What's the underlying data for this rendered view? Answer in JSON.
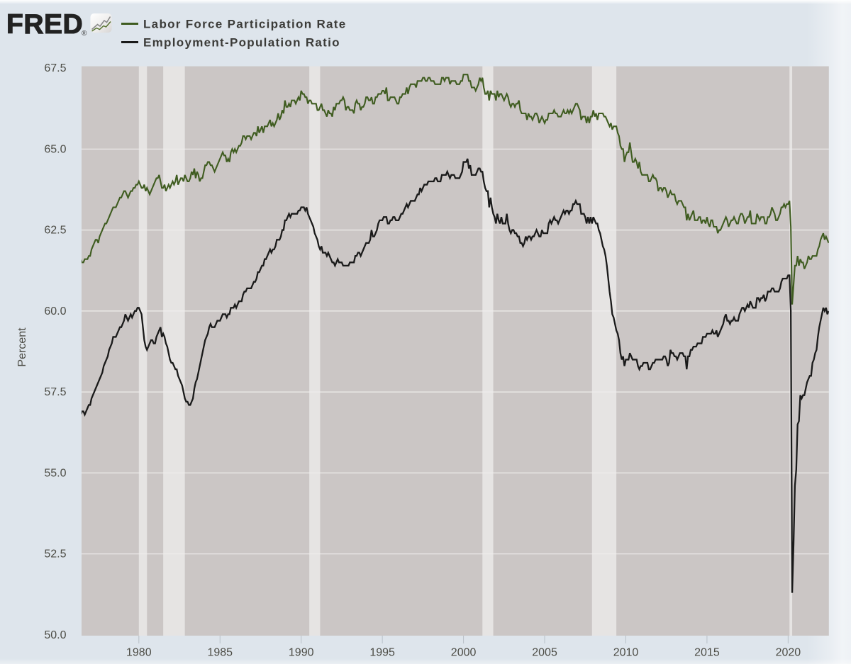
{
  "header": {
    "logo_text": "FRED",
    "registered_mark": "®",
    "logo_icon": "line-chart-icon"
  },
  "legend": [
    {
      "label": "Labor Force Participation Rate",
      "color": "#3f5c20"
    },
    {
      "label": "Employment-Population Ratio",
      "color": "#1a1a1a"
    }
  ],
  "style": {
    "background": "#dee5ec",
    "plot_background": "#cbc6c5",
    "recession_band": "#e6e4e3",
    "gridline": "#efedec",
    "tick_mark": "#b9c0c8",
    "tick_text": "#4c4c45",
    "legend_text": "#3b3b38",
    "logo_color": "#222222"
  },
  "chart_data": {
    "type": "line",
    "title": "",
    "xlabel": "",
    "ylabel": "Percent",
    "frequency": "monthly",
    "x_start": "1976-06",
    "x_end": "2022-07",
    "ylim": [
      50.0,
      67.5
    ],
    "xlim": [
      1976.47,
      2022.51
    ],
    "grid": "horizontal",
    "legend_position": "top-left",
    "yticks": [
      67.5,
      65.0,
      62.5,
      60.0,
      57.5,
      55.0,
      52.5,
      50.0
    ],
    "ytick_labels": [
      "67.5",
      "65.0",
      "62.5",
      "60.0",
      "57.5",
      "55.0",
      "52.5",
      "50.0"
    ],
    "xticks": [
      1980,
      1985,
      1990,
      1995,
      2000,
      2005,
      2010,
      2015,
      2020
    ],
    "xtick_labels": [
      "1980",
      "1985",
      "1990",
      "1995",
      "2000",
      "2005",
      "2010",
      "2015",
      "2020"
    ],
    "series": [
      {
        "name": "Labor Force Participation Rate",
        "color": "#3f5c20",
        "values": [
          61.6,
          61.5,
          61.5,
          61.6,
          61.6,
          61.6,
          61.7,
          61.7,
          61.9,
          62.0,
          62.1,
          62.2,
          62.2,
          62.1,
          62.3,
          62.4,
          62.5,
          62.6,
          62.7,
          62.7,
          62.8,
          62.9,
          63.0,
          63.1,
          63.2,
          63.2,
          63.2,
          63.3,
          63.4,
          63.5,
          63.5,
          63.6,
          63.7,
          63.7,
          63.6,
          63.5,
          63.6,
          63.7,
          63.7,
          63.8,
          63.8,
          63.9,
          63.9,
          64.0,
          63.9,
          63.8,
          63.8,
          63.9,
          63.7,
          63.8,
          63.7,
          63.6,
          63.7,
          63.8,
          63.9,
          64.0,
          64.1,
          64.1,
          64.2,
          64.0,
          63.8,
          63.8,
          63.9,
          63.7,
          63.8,
          63.9,
          63.8,
          63.9,
          64.0,
          63.9,
          64.0,
          64.2,
          63.9,
          64.0,
          64.1,
          64.1,
          64.0,
          64.2,
          64.1,
          64.0,
          64.0,
          64.1,
          64.3,
          64.2,
          64.4,
          64.1,
          64.3,
          64.2,
          64.0,
          64.1,
          64.1,
          64.3,
          64.5,
          64.5,
          64.6,
          64.6,
          64.5,
          64.5,
          64.4,
          64.3,
          64.4,
          64.5,
          64.6,
          64.7,
          64.8,
          64.9,
          64.8,
          64.8,
          64.6,
          64.7,
          64.6,
          64.9,
          65.0,
          64.9,
          65.0,
          64.9,
          65.0,
          65.1,
          65.1,
          65.2,
          65.4,
          65.4,
          65.3,
          65.4,
          65.4,
          65.4,
          65.3,
          65.4,
          65.5,
          65.5,
          65.4,
          65.7,
          65.5,
          65.6,
          65.7,
          65.5,
          65.7,
          65.7,
          65.7,
          65.8,
          65.9,
          65.7,
          65.8,
          65.7,
          65.8,
          65.9,
          66.1,
          65.9,
          66.0,
          66.2,
          66.1,
          66.5,
          66.3,
          66.3,
          66.4,
          66.3,
          66.5,
          66.5,
          66.5,
          66.4,
          66.5,
          66.6,
          66.5,
          66.8,
          66.7,
          66.7,
          66.6,
          66.6,
          66.4,
          66.5,
          66.5,
          66.4,
          66.4,
          66.4,
          66.4,
          66.2,
          66.2,
          66.3,
          66.4,
          66.2,
          66.2,
          66.1,
          66.0,
          66.2,
          66.1,
          66.1,
          66.0,
          66.3,
          66.2,
          66.4,
          66.4,
          66.4,
          66.5,
          66.5,
          66.6,
          66.5,
          66.2,
          66.3,
          66.3,
          66.2,
          66.2,
          66.2,
          66.1,
          66.4,
          66.5,
          66.4,
          66.4,
          66.2,
          66.3,
          66.3,
          66.4,
          66.6,
          66.6,
          66.5,
          66.5,
          66.6,
          66.4,
          66.4,
          66.6,
          66.6,
          66.7,
          66.7,
          66.7,
          66.8,
          66.8,
          66.7,
          66.9,
          66.5,
          66.5,
          66.6,
          66.6,
          66.6,
          66.6,
          66.5,
          66.4,
          66.4,
          66.6,
          66.6,
          66.7,
          66.7,
          66.7,
          66.9,
          66.7,
          66.9,
          67.0,
          67.0,
          67.0,
          67.0,
          66.9,
          67.1,
          67.1,
          67.1,
          67.1,
          67.2,
          67.2,
          67.1,
          67.1,
          67.2,
          67.2,
          67.1,
          67.1,
          67.1,
          67.0,
          67.0,
          67.0,
          67.0,
          67.0,
          67.2,
          67.2,
          67.1,
          67.2,
          67.2,
          67.2,
          67.0,
          67.1,
          67.1,
          67.1,
          67.1,
          67.0,
          67.0,
          67.0,
          67.1,
          67.1,
          67.3,
          67.3,
          67.3,
          67.3,
          67.1,
          67.1,
          66.9,
          66.9,
          66.9,
          66.8,
          66.9,
          67.0,
          67.2,
          67.1,
          67.2,
          66.9,
          66.7,
          66.7,
          66.8,
          66.5,
          66.8,
          66.7,
          66.7,
          66.7,
          66.5,
          66.8,
          66.6,
          66.7,
          66.7,
          66.6,
          66.5,
          66.6,
          66.7,
          66.6,
          66.4,
          66.3,
          66.4,
          66.4,
          66.3,
          66.4,
          66.4,
          66.5,
          66.2,
          66.1,
          66.1,
          66.1,
          66.1,
          65.9,
          66.1,
          66.0,
          66.0,
          65.9,
          66.0,
          66.1,
          66.1,
          66.0,
          65.8,
          65.9,
          66.0,
          65.9,
          65.8,
          65.9,
          65.9,
          66.1,
          66.1,
          66.1,
          66.1,
          66.2,
          66.1,
          66.1,
          66.0,
          66.0,
          66.0,
          66.1,
          66.2,
          66.1,
          66.1,
          66.2,
          66.1,
          66.2,
          66.1,
          66.2,
          66.3,
          66.4,
          66.4,
          66.3,
          66.2,
          65.9,
          66.0,
          66.0,
          66.0,
          65.8,
          66.0,
          65.8,
          66.0,
          66.0,
          66.2,
          66.0,
          66.1,
          65.9,
          66.1,
          66.1,
          66.1,
          66.1,
          66.0,
          66.0,
          65.9,
          65.8,
          65.7,
          65.8,
          65.6,
          65.7,
          65.7,
          65.7,
          65.5,
          65.4,
          65.1,
          65.0,
          65.0,
          64.6,
          64.8,
          64.9,
          64.9,
          65.2,
          64.9,
          64.6,
          64.6,
          64.7,
          64.6,
          64.4,
          64.6,
          64.3,
          64.2,
          64.2,
          64.2,
          64.2,
          64.2,
          64.0,
          64.0,
          64.1,
          64.2,
          64.1,
          64.1,
          64.0,
          63.7,
          63.8,
          63.8,
          63.7,
          63.8,
          63.8,
          63.7,
          63.5,
          63.6,
          63.7,
          63.6,
          63.6,
          63.6,
          63.4,
          63.3,
          63.4,
          63.4,
          63.4,
          63.3,
          63.2,
          63.2,
          62.8,
          63.0,
          62.8,
          62.9,
          63.0,
          63.1,
          62.8,
          62.8,
          62.8,
          62.9,
          62.9,
          62.7,
          62.8,
          62.8,
          62.7,
          62.9,
          62.7,
          62.6,
          62.8,
          62.8,
          62.6,
          62.6,
          62.6,
          62.4,
          62.5,
          62.5,
          62.6,
          62.7,
          62.8,
          62.9,
          62.8,
          62.6,
          62.7,
          62.8,
          62.8,
          62.9,
          62.8,
          62.7,
          62.7,
          62.9,
          63.0,
          63.0,
          62.9,
          62.7,
          62.8,
          62.9,
          62.9,
          63.1,
          62.7,
          62.7,
          62.7,
          62.7,
          63.0,
          62.9,
          62.8,
          62.9,
          62.9,
          62.9,
          62.7,
          62.7,
          62.9,
          62.9,
          63.0,
          63.2,
          63.1,
          63.0,
          62.8,
          62.8,
          62.9,
          63.0,
          63.2,
          63.2,
          63.3,
          63.2,
          63.3,
          63.3,
          63.4,
          62.6,
          60.2,
          60.8,
          61.4,
          61.4,
          61.7,
          61.4,
          61.6,
          61.5,
          61.5,
          61.3,
          61.4,
          61.5,
          61.7,
          61.6,
          61.6,
          61.7,
          61.7,
          61.7,
          61.7,
          61.9,
          62.0,
          62.2,
          62.3,
          62.4,
          62.2,
          62.3,
          62.2,
          62.1
        ]
      },
      {
        "name": "Employment-Population Ratio",
        "color": "#1a1a1a",
        "values": [
          56.8,
          56.9,
          56.9,
          56.8,
          56.9,
          57.0,
          57.1,
          57.1,
          57.3,
          57.4,
          57.5,
          57.6,
          57.7,
          57.8,
          57.9,
          58.0,
          58.1,
          58.3,
          58.4,
          58.5,
          58.6,
          58.8,
          58.9,
          59.0,
          59.2,
          59.2,
          59.2,
          59.3,
          59.4,
          59.5,
          59.5,
          59.6,
          59.7,
          59.9,
          59.8,
          59.7,
          59.8,
          59.9,
          59.8,
          59.9,
          60.0,
          60.0,
          60.1,
          60.1,
          60.0,
          59.9,
          59.5,
          59.1,
          58.9,
          58.8,
          58.9,
          59.0,
          59.1,
          59.1,
          59.0,
          59.0,
          59.2,
          59.3,
          59.4,
          59.5,
          59.2,
          59.3,
          59.2,
          59.0,
          58.9,
          58.7,
          58.5,
          58.4,
          58.4,
          58.3,
          58.2,
          58.2,
          58.0,
          57.9,
          57.8,
          57.7,
          57.5,
          57.3,
          57.2,
          57.2,
          57.1,
          57.1,
          57.2,
          57.3,
          57.6,
          57.8,
          57.9,
          58.1,
          58.3,
          58.5,
          58.7,
          58.9,
          59.1,
          59.2,
          59.3,
          59.5,
          59.6,
          59.5,
          59.5,
          59.5,
          59.6,
          59.7,
          59.7,
          59.7,
          59.8,
          59.9,
          59.9,
          59.9,
          59.8,
          59.9,
          59.9,
          60.1,
          60.1,
          60.1,
          60.2,
          60.1,
          60.2,
          60.3,
          60.3,
          60.3,
          60.5,
          60.6,
          60.6,
          60.7,
          60.7,
          60.7,
          60.7,
          60.8,
          60.9,
          60.9,
          61.0,
          61.2,
          61.2,
          61.3,
          61.4,
          61.4,
          61.6,
          61.6,
          61.7,
          61.8,
          61.9,
          61.8,
          61.9,
          61.9,
          62.0,
          62.2,
          62.2,
          62.2,
          62.3,
          62.5,
          62.5,
          62.8,
          62.8,
          62.9,
          63.0,
          62.9,
          63.0,
          63.0,
          63.0,
          63.0,
          63.0,
          63.1,
          63.1,
          63.2,
          63.2,
          63.2,
          63.1,
          63.2,
          63.0,
          62.9,
          62.8,
          62.7,
          62.6,
          62.4,
          62.3,
          62.2,
          62.0,
          61.9,
          62.0,
          61.8,
          61.8,
          61.8,
          61.7,
          61.8,
          61.7,
          61.6,
          61.5,
          61.5,
          61.4,
          61.5,
          61.6,
          61.5,
          61.5,
          61.5,
          61.4,
          61.4,
          61.4,
          61.4,
          61.4,
          61.5,
          61.5,
          61.5,
          61.5,
          61.7,
          61.7,
          61.8,
          61.8,
          61.7,
          61.8,
          61.9,
          62.0,
          62.1,
          62.1,
          62.1,
          62.2,
          62.5,
          62.3,
          62.3,
          62.4,
          62.5,
          62.7,
          62.8,
          62.8,
          62.8,
          62.9,
          62.9,
          62.9,
          62.7,
          62.7,
          62.8,
          62.8,
          62.9,
          62.9,
          62.8,
          62.8,
          62.8,
          62.9,
          63.0,
          63.0,
          63.1,
          63.2,
          63.3,
          63.2,
          63.3,
          63.4,
          63.4,
          63.4,
          63.4,
          63.5,
          63.6,
          63.6,
          63.8,
          63.7,
          63.8,
          63.9,
          63.9,
          63.9,
          64.0,
          64.0,
          64.0,
          64.0,
          64.0,
          64.1,
          64.1,
          64.0,
          64.0,
          64.0,
          64.2,
          64.2,
          64.2,
          64.2,
          64.3,
          64.2,
          64.1,
          64.2,
          64.2,
          64.2,
          64.1,
          64.1,
          64.1,
          64.1,
          64.2,
          64.3,
          64.6,
          64.6,
          64.6,
          64.7,
          64.4,
          64.5,
          64.2,
          64.2,
          64.2,
          64.2,
          64.3,
          64.4,
          64.4,
          64.3,
          64.3,
          64.0,
          63.8,
          63.7,
          63.7,
          63.2,
          63.5,
          63.2,
          63.0,
          62.9,
          62.7,
          63.0,
          62.8,
          62.7,
          62.9,
          62.7,
          62.7,
          62.7,
          63.0,
          62.7,
          62.5,
          62.4,
          62.5,
          62.5,
          62.4,
          62.4,
          62.3,
          62.3,
          62.1,
          62.1,
          62.0,
          62.1,
          62.3,
          62.2,
          62.3,
          62.3,
          62.2,
          62.3,
          62.3,
          62.4,
          62.5,
          62.4,
          62.3,
          62.3,
          62.5,
          62.4,
          62.4,
          62.4,
          62.4,
          62.7,
          62.8,
          62.7,
          62.8,
          62.9,
          62.8,
          62.8,
          62.7,
          62.8,
          62.9,
          63.0,
          63.1,
          63.0,
          63.1,
          63.1,
          63.0,
          63.1,
          63.1,
          63.3,
          63.3,
          63.4,
          63.3,
          63.3,
          63.3,
          63.0,
          63.0,
          63.0,
          62.9,
          62.7,
          62.9,
          62.7,
          62.9,
          62.7,
          62.9,
          62.8,
          62.7,
          62.7,
          62.5,
          62.4,
          62.2,
          62.0,
          61.9,
          61.7,
          61.4,
          61.0,
          60.6,
          60.3,
          59.9,
          59.8,
          59.6,
          59.4,
          59.3,
          59.1,
          58.7,
          58.5,
          58.6,
          58.3,
          58.5,
          58.5,
          58.5,
          58.7,
          58.6,
          58.5,
          58.5,
          58.5,
          58.5,
          58.3,
          58.2,
          58.3,
          58.3,
          58.4,
          58.4,
          58.4,
          58.4,
          58.2,
          58.2,
          58.3,
          58.4,
          58.4,
          58.5,
          58.5,
          58.5,
          58.5,
          58.5,
          58.5,
          58.6,
          58.6,
          58.5,
          58.3,
          58.4,
          58.8,
          58.7,
          58.7,
          58.6,
          58.6,
          58.5,
          58.6,
          58.7,
          58.7,
          58.7,
          58.6,
          58.6,
          58.2,
          58.6,
          58.6,
          58.8,
          58.8,
          58.9,
          58.9,
          58.9,
          59.0,
          59.0,
          59.0,
          59.0,
          59.2,
          59.2,
          59.2,
          59.3,
          59.3,
          59.3,
          59.3,
          59.4,
          59.3,
          59.3,
          59.4,
          59.2,
          59.3,
          59.4,
          59.5,
          59.6,
          59.8,
          59.9,
          59.7,
          59.7,
          59.6,
          59.7,
          59.7,
          59.8,
          59.7,
          59.7,
          59.7,
          59.9,
          60.0,
          60.1,
          60.1,
          60.0,
          60.1,
          60.2,
          60.1,
          60.3,
          60.2,
          60.1,
          60.1,
          60.1,
          60.4,
          60.4,
          60.3,
          60.4,
          60.4,
          60.5,
          60.3,
          60.4,
          60.6,
          60.6,
          60.6,
          60.7,
          60.7,
          60.6,
          60.6,
          60.6,
          60.6,
          60.7,
          60.9,
          61.0,
          61.0,
          61.0,
          61.0,
          61.1,
          61.1,
          60.0,
          51.3,
          52.8,
          54.6,
          55.1,
          56.5,
          56.6,
          57.4,
          57.3,
          57.4,
          57.4,
          57.6,
          57.8,
          57.9,
          58.0,
          58.0,
          58.4,
          58.5,
          58.7,
          58.8,
          59.2,
          59.5,
          59.7,
          59.9,
          60.1,
          60.0,
          60.1,
          59.9,
          60.0
        ]
      }
    ],
    "recessions": [
      {
        "start": "1980-01",
        "end": "1980-07"
      },
      {
        "start": "1981-07",
        "end": "1982-11"
      },
      {
        "start": "1990-07",
        "end": "1991-03"
      },
      {
        "start": "2001-03",
        "end": "2001-11"
      },
      {
        "start": "2007-12",
        "end": "2009-06"
      },
      {
        "start": "2020-02",
        "end": "2020-04"
      }
    ]
  }
}
